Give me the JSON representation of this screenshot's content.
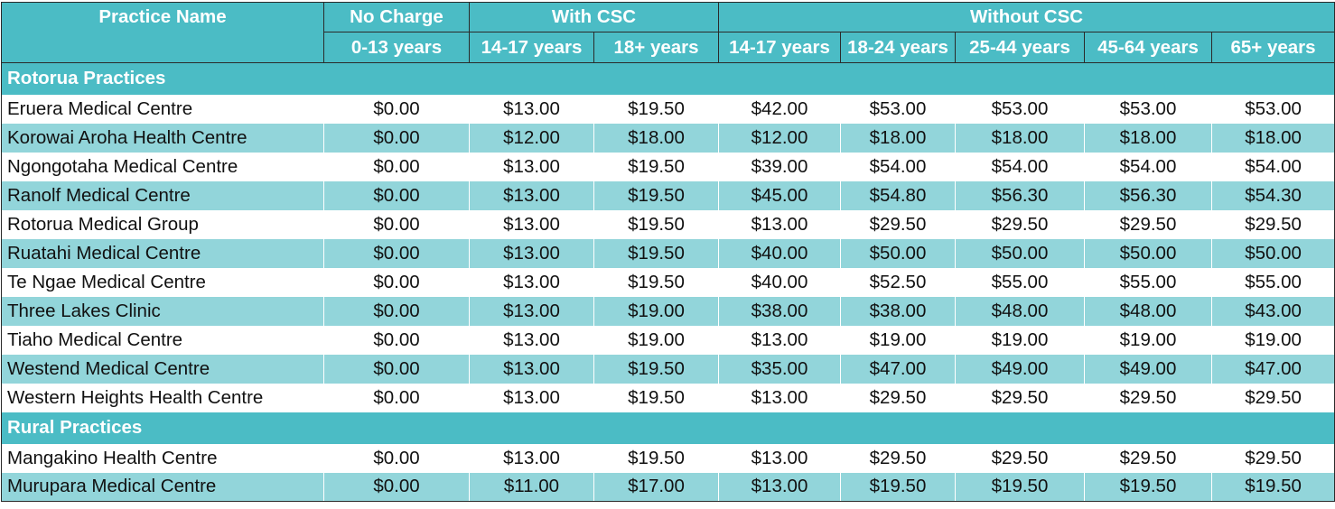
{
  "columns": {
    "practice_name": "Practice Name",
    "groups": [
      {
        "label": "No Charge"
      },
      {
        "label": "With CSC"
      },
      {
        "label": "Without CSC"
      }
    ],
    "ages": [
      "0-13 years",
      "14-17 years",
      "18+ years",
      "14-17 years",
      "18-24 years",
      "25-44 years",
      "45-64 years",
      "65+ years"
    ]
  },
  "sections": [
    {
      "title": "Rotorua Practices",
      "rows": [
        {
          "name": "Eruera Medical Centre",
          "values": [
            "$0.00",
            "$13.00",
            "$19.50",
            "$42.00",
            "$53.00",
            "$53.00",
            "$53.00",
            "$53.00"
          ]
        },
        {
          "name": "Korowai Aroha Health Centre",
          "values": [
            "$0.00",
            "$12.00",
            "$18.00",
            "$12.00",
            "$18.00",
            "$18.00",
            "$18.00",
            "$18.00"
          ]
        },
        {
          "name": "Ngongotaha Medical Centre",
          "values": [
            "$0.00",
            "$13.00",
            "$19.50",
            "$39.00",
            "$54.00",
            "$54.00",
            "$54.00",
            "$54.00"
          ]
        },
        {
          "name": "Ranolf Medical Centre",
          "values": [
            "$0.00",
            "$13.00",
            "$19.50",
            "$45.00",
            "$54.80",
            "$56.30",
            "$56.30",
            "$54.30"
          ]
        },
        {
          "name": "Rotorua Medical Group",
          "values": [
            "$0.00",
            "$13.00",
            "$19.50",
            "$13.00",
            "$29.50",
            "$29.50",
            "$29.50",
            "$29.50"
          ]
        },
        {
          "name": "Ruatahi Medical Centre",
          "values": [
            "$0.00",
            "$13.00",
            "$19.50",
            "$40.00",
            "$50.00",
            "$50.00",
            "$50.00",
            "$50.00"
          ]
        },
        {
          "name": "Te Ngae Medical Centre",
          "values": [
            "$0.00",
            "$13.00",
            "$19.50",
            "$40.00",
            "$52.50",
            "$55.00",
            "$55.00",
            "$55.00"
          ]
        },
        {
          "name": "Three Lakes Clinic",
          "values": [
            "$0.00",
            "$13.00",
            "$19.00",
            "$38.00",
            "$38.00",
            "$48.00",
            "$48.00",
            "$43.00"
          ]
        },
        {
          "name": "Tiaho Medical Centre",
          "values": [
            "$0.00",
            "$13.00",
            "$19.00",
            "$13.00",
            "$19.00",
            "$19.00",
            "$19.00",
            "$19.00"
          ]
        },
        {
          "name": "Westend Medical Centre",
          "values": [
            "$0.00",
            "$13.00",
            "$19.50",
            "$35.00",
            "$47.00",
            "$49.00",
            "$49.00",
            "$47.00"
          ]
        },
        {
          "name": "Western Heights Health Centre",
          "values": [
            "$0.00",
            "$13.00",
            "$19.50",
            "$13.00",
            "$29.50",
            "$29.50",
            "$29.50",
            "$29.50"
          ]
        }
      ]
    },
    {
      "title": "Rural Practices",
      "rows": [
        {
          "name": "Mangakino Health Centre",
          "values": [
            "$0.00",
            "$13.00",
            "$19.50",
            "$13.00",
            "$29.50",
            "$29.50",
            "$29.50",
            "$29.50"
          ]
        },
        {
          "name": "Murupara Medical Centre",
          "values": [
            "$0.00",
            "$11.00",
            "$17.00",
            "$13.00",
            "$19.50",
            "$19.50",
            "$19.50",
            "$19.50"
          ]
        }
      ]
    }
  ],
  "colors": {
    "header_bg": "#4bbcc5",
    "alt_row_bg": "#92d5da",
    "row_bg": "#ffffff",
    "header_text": "#ffffff"
  }
}
